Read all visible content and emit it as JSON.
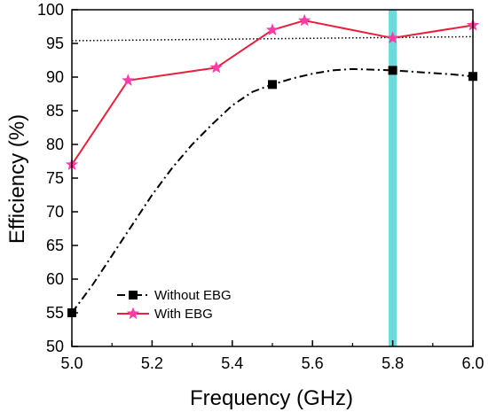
{
  "chart_data": {
    "type": "line",
    "title": "",
    "xlabel": "Frequency (GHz)",
    "ylabel": "Efficiency (%)",
    "xlim": [
      5.0,
      6.0
    ],
    "ylim": [
      50,
      100
    ],
    "xticks": [
      5.0,
      5.2,
      5.4,
      5.6,
      5.8,
      6.0
    ],
    "xtick_labels": [
      "5.0",
      "5.2",
      "5.4",
      "5.6",
      "5.8",
      "6.0"
    ],
    "yticks": [
      50,
      55,
      60,
      65,
      70,
      75,
      80,
      85,
      90,
      95,
      100
    ],
    "ytick_labels": [
      "50",
      "55",
      "60",
      "65",
      "70",
      "75",
      "80",
      "85",
      "90",
      "95",
      "100"
    ],
    "grid": false,
    "legend_position": "bottom-left",
    "reference_line": {
      "y_start": 95.4,
      "y_end": 96.0,
      "style": "dotted",
      "color": "#000000"
    },
    "highlight_band": {
      "x_from": 5.79,
      "x_to": 5.81,
      "color": "#5bd6d6"
    },
    "series": [
      {
        "name": "Without EBG",
        "color": "#000000",
        "line_style": "dash-dot",
        "marker": "square",
        "x": [
          5.0,
          5.5,
          5.8,
          6.0
        ],
        "y": [
          55.0,
          88.9,
          91.0,
          90.1
        ],
        "curve_x": [
          5.0,
          5.05,
          5.1,
          5.15,
          5.2,
          5.25,
          5.3,
          5.35,
          5.4,
          5.45,
          5.5,
          5.55,
          5.6,
          5.65,
          5.7,
          5.75,
          5.8,
          5.85,
          5.9,
          5.95,
          6.0
        ],
        "curve_y": [
          55.0,
          59.0,
          63.5,
          68.0,
          72.5,
          76.5,
          80.0,
          83.0,
          85.8,
          87.8,
          88.9,
          89.8,
          90.5,
          91.0,
          91.2,
          91.1,
          91.0,
          90.8,
          90.6,
          90.4,
          90.1
        ]
      },
      {
        "name": "With EBG",
        "color": "#e8203c",
        "marker_color": "#ff3ba8",
        "line_style": "solid",
        "marker": "star",
        "x": [
          5.0,
          5.14,
          5.36,
          5.5,
          5.58,
          5.8,
          6.0
        ],
        "y": [
          77.0,
          89.5,
          91.4,
          97.0,
          98.4,
          95.8,
          97.7
        ]
      }
    ]
  }
}
